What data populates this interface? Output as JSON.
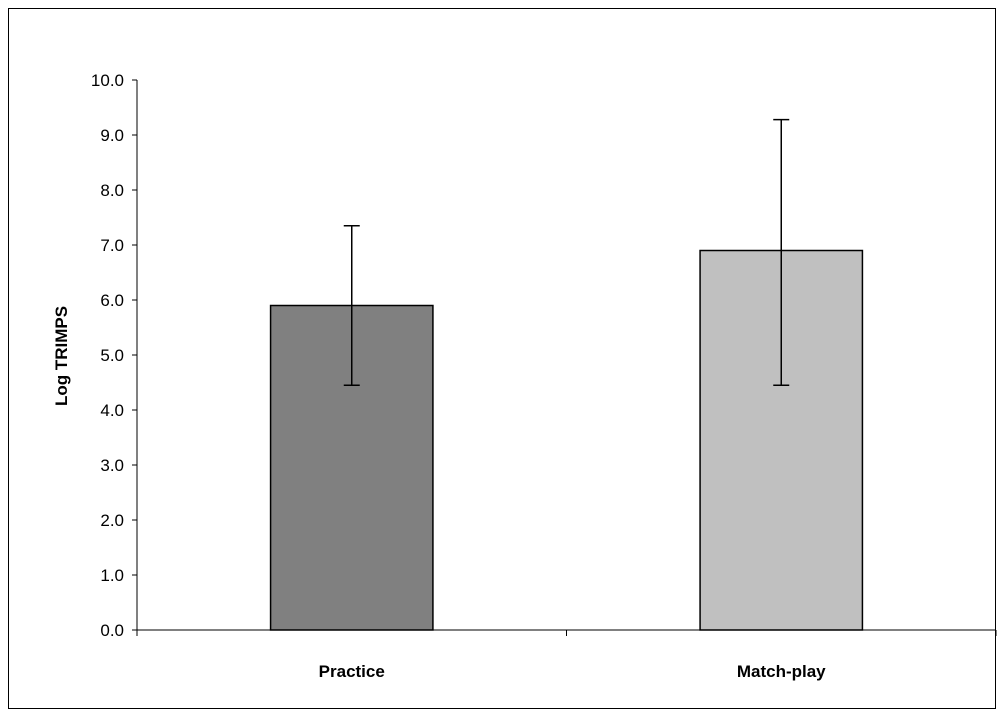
{
  "chart_data": {
    "type": "bar",
    "title": "",
    "xlabel": "",
    "ylabel": "Log TRIMPS",
    "categories": [
      "Practice",
      "Match-play"
    ],
    "series": [
      {
        "values": [
          5.9,
          6.9
        ],
        "error_upper": [
          7.35,
          9.28
        ],
        "error_lower": [
          4.45,
          4.45
        ],
        "colors": [
          "#808080",
          "#c0c0c0"
        ]
      }
    ],
    "ylim": [
      0,
      10
    ],
    "yticks": [
      "0.0",
      "1.0",
      "2.0",
      "3.0",
      "4.0",
      "5.0",
      "6.0",
      "7.0",
      "8.0",
      "9.0",
      "10.0"
    ],
    "grid": false,
    "legend": "none"
  }
}
